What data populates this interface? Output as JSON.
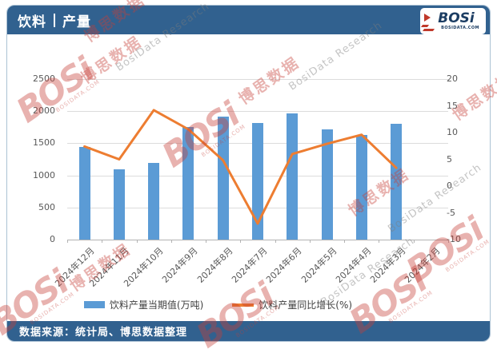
{
  "header": {
    "title_left": "饮料",
    "title_right": "产量",
    "logo": {
      "text": "BOSi",
      "subtext": "BOSIDATA.COM"
    }
  },
  "footer": {
    "source": "数据来源：统计局、博思数据整理"
  },
  "colors": {
    "banner_blue": "#31618F",
    "bar_blue": "#5B9BD5",
    "line_orange": "#ED7D31",
    "watermark_red": "#C53E38",
    "axis_text_gray": "#595959"
  },
  "watermark": {
    "brand": "BOSi",
    "brand_sub": "BOSIDATA.COM",
    "cn": "博思数据",
    "en": "BosiData Research"
  },
  "chart_data": {
    "type": "bar",
    "combo": "bar+line",
    "categories": [
      "2024年12月",
      "2024年11月",
      "2024年10月",
      "2024年9月",
      "2024年8月",
      "2024年7月",
      "2024年6月",
      "2024年5月",
      "2024年4月",
      "2024年3月",
      "2024年2月"
    ],
    "series": [
      {
        "name": "饮料产量当期值(万吨)",
        "type": "bar",
        "axis": "left",
        "color": "#5B9BD5",
        "values": [
          1440,
          1100,
          1190,
          1750,
          1910,
          1810,
          1960,
          1720,
          1630,
          1800,
          null
        ]
      },
      {
        "name": "饮料产量同比增长(%)",
        "type": "line",
        "axis": "right",
        "color": "#ED7D31",
        "values": [
          7.4,
          5.0,
          14.2,
          10.6,
          4.8,
          -7.0,
          6.0,
          7.9,
          9.6,
          3.4,
          null
        ]
      }
    ],
    "left_axis": {
      "min": 0,
      "max": 2500,
      "step": 500,
      "ticks": [
        0,
        500,
        1000,
        1500,
        2000,
        2500
      ]
    },
    "right_axis": {
      "min": -10,
      "max": 20,
      "step": 5,
      "ticks": [
        -10,
        -5,
        0,
        5,
        10,
        15,
        20
      ]
    },
    "grid": "horizontal",
    "legend_position": "bottom",
    "title": "饮料 | 产量"
  }
}
